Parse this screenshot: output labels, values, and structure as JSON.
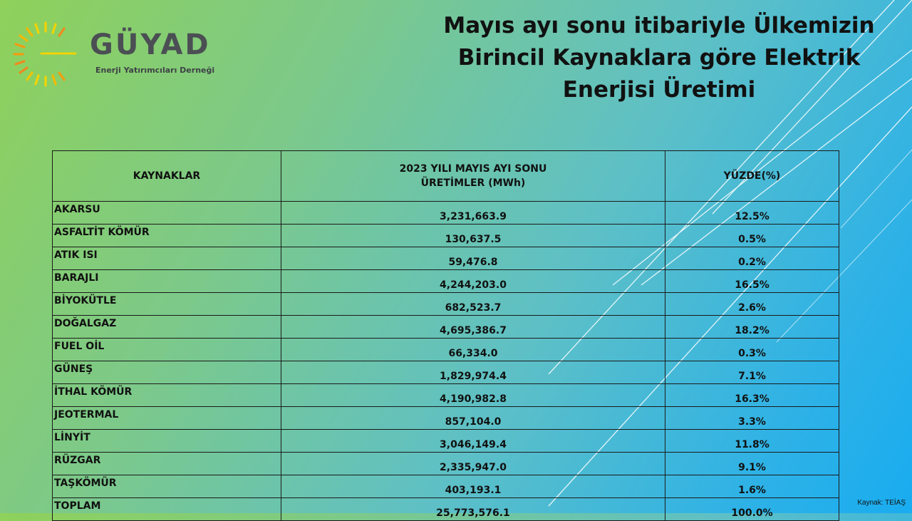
{
  "logo": {
    "name": "GÜYAD",
    "tagline": "Enerji Yatırımcıları Derneği",
    "colors": {
      "ray_yellow": "#f3d300",
      "ray_orange": "#f08a1e",
      "text": "#4b4f54"
    }
  },
  "title": {
    "line1": "Mayıs ayı sonu itibariyle Ülkemizin",
    "line2": "Birincil Kaynaklara göre Elektrik",
    "line3": "Enerjisi Üretimi"
  },
  "table": {
    "headers": {
      "source": "KAYNAKLAR",
      "production_line1": "2023 YILI MAYIS AYI SONU",
      "production_line2": "ÜRETİMLER (MWh)",
      "percent": "YÜZDE(%)"
    },
    "rows": [
      {
        "source": "AKARSU",
        "production": "3,231,663.9",
        "percent": "12.5%"
      },
      {
        "source": "ASFALTİT KÖMÜR",
        "production": "130,637.5",
        "percent": "0.5%"
      },
      {
        "source": "ATIK ISI",
        "production": "59,476.8",
        "percent": "0.2%"
      },
      {
        "source": "BARAJLI",
        "production": "4,244,203.0",
        "percent": "16.5%"
      },
      {
        "source": "BİYOKÜTLE",
        "production": "682,523.7",
        "percent": "2.6%"
      },
      {
        "source": "DOĞALGAZ",
        "production": "4,695,386.7",
        "percent": "18.2%"
      },
      {
        "source": "FUEL OİL",
        "production": "66,334.0",
        "percent": "0.3%"
      },
      {
        "source": "GÜNEŞ",
        "production": "1,829,974.4",
        "percent": "7.1%"
      },
      {
        "source": "İTHAL KÖMÜR",
        "production": "4,190,982.8",
        "percent": "16.3%"
      },
      {
        "source": "JEOTERMAL",
        "production": "857,104.0",
        "percent": "3.3%"
      },
      {
        "source": "LİNYİT",
        "production": "3,046,149.4",
        "percent": "11.8%"
      },
      {
        "source": "RÜZGAR",
        "production": "2,335,947.0",
        "percent": "9.1%"
      },
      {
        "source": "TAŞKÖMÜR",
        "production": "403,193.1",
        "percent": "1.6%"
      },
      {
        "source": "TOPLAM",
        "production": "25,773,576.1",
        "percent": "100.0%"
      }
    ]
  },
  "source_note": "Kaynak: TEİAŞ",
  "colors": {
    "background_start": "#8fd15a",
    "background_end": "#19acf0",
    "table_border": "#1a1a1a",
    "text": "#111111"
  }
}
